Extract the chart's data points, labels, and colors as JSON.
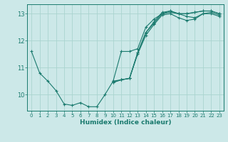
{
  "xlabel": "Humidex (Indice chaleur)",
  "ylabel": "",
  "bg_color": "#cce8e8",
  "line_color": "#1a7a6e",
  "grid_color": "#aad4d0",
  "xlim": [
    -0.5,
    23.5
  ],
  "ylim": [
    9.4,
    13.35
  ],
  "yticks": [
    10,
    11,
    12,
    13
  ],
  "xticks": [
    0,
    1,
    2,
    3,
    4,
    5,
    6,
    7,
    8,
    9,
    10,
    11,
    12,
    13,
    14,
    15,
    16,
    17,
    18,
    19,
    20,
    21,
    22,
    23
  ],
  "series": [
    [
      11.6,
      10.8,
      10.5,
      10.15,
      9.65,
      9.6,
      9.7,
      9.55,
      9.55,
      10.0,
      10.5,
      11.6,
      11.6,
      11.7,
      12.5,
      12.8,
      13.0,
      13.1,
      13.0,
      13.0,
      13.05,
      13.1,
      13.1,
      13.0
    ],
    [
      null,
      null,
      null,
      null,
      null,
      null,
      null,
      null,
      null,
      null,
      10.5,
      10.55,
      10.6,
      11.55,
      12.3,
      12.7,
      13.05,
      13.1,
      13.0,
      13.0,
      13.05,
      13.1,
      13.1,
      13.0
    ],
    [
      null,
      null,
      null,
      null,
      null,
      null,
      null,
      null,
      null,
      null,
      10.45,
      10.55,
      10.6,
      11.55,
      12.3,
      12.65,
      13.0,
      13.05,
      13.0,
      12.9,
      12.85,
      13.0,
      13.05,
      12.95
    ],
    [
      null,
      null,
      null,
      null,
      null,
      null,
      null,
      null,
      null,
      null,
      10.45,
      10.55,
      10.6,
      11.5,
      12.2,
      12.6,
      12.95,
      13.0,
      12.85,
      12.75,
      12.8,
      13.0,
      13.0,
      12.9
    ]
  ]
}
